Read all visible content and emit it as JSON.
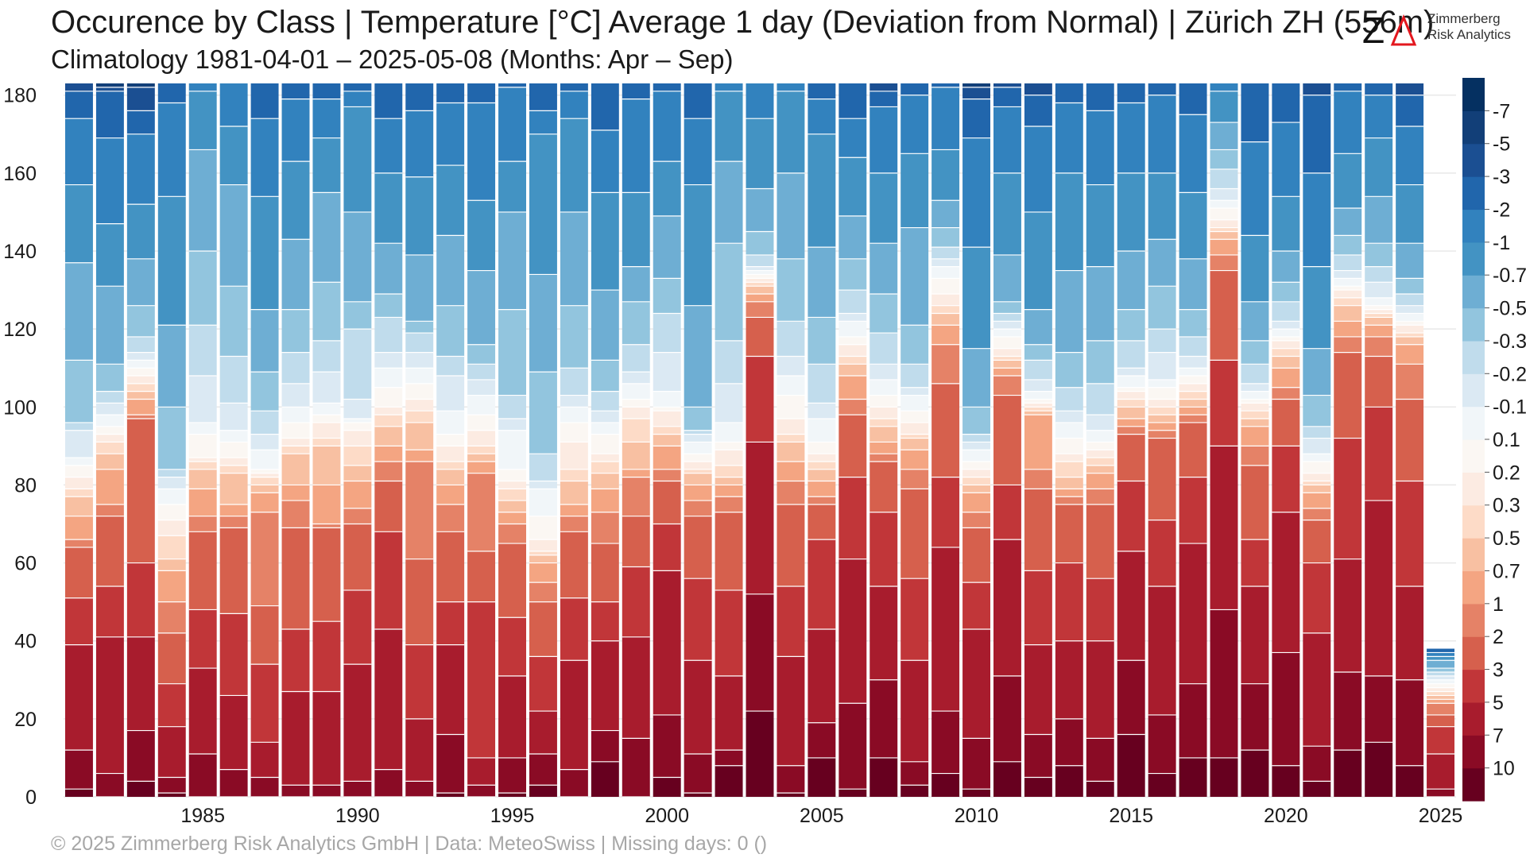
{
  "header": {
    "title": "Occurence by Class | Temperature [°C] Average 1 day (Deviation from Normal) | Zürich  ZH (556m)",
    "subtitle": "Climatology 1981-04-01 – 2025-05-08 (Months: Apr – Sep)"
  },
  "logo": {
    "line1": "Zimmerberg",
    "line2": "Risk Analytics",
    "mark": "Z-triangle-logo"
  },
  "footer": {
    "text": "©  2025 Zimmerberg Risk Analytics GmbH | Data: MeteoSwiss | Missing days: 0 ()"
  },
  "colors": {
    "grid": "#e8e8e8",
    "background": "#ffffff",
    "class_colors": [
      "#67001f",
      "#8a0b25",
      "#a81c2d",
      "#c13639",
      "#d6604d",
      "#e58267",
      "#f4a582",
      "#f8c0a2",
      "#fddbc7",
      "#fcebe2",
      "#fbf7f3",
      "#f1f6f9",
      "#dbe9f3",
      "#c0dcec",
      "#92c5de",
      "#6eaed3",
      "#4393c3",
      "#3282be",
      "#2166ac",
      "#1b4f92",
      "#123f78",
      "#053061"
    ]
  },
  "chart_data": {
    "type": "bar",
    "stacked": true,
    "grid": true,
    "ylim": [
      0,
      183
    ],
    "yticks": [
      "0",
      "20",
      "40",
      "60",
      "80",
      "100",
      "120",
      "140",
      "160",
      "180"
    ],
    "ytick_values": [
      0,
      20,
      40,
      60,
      80,
      100,
      120,
      140,
      160,
      180
    ],
    "xtick_labels": [
      "1985",
      "1990",
      "1995",
      "2000",
      "2005",
      "2010",
      "2015",
      "2020",
      "2025"
    ],
    "categories": [
      1981,
      1982,
      1983,
      1984,
      1985,
      1986,
      1987,
      1988,
      1989,
      1990,
      1991,
      1992,
      1993,
      1994,
      1995,
      1996,
      1997,
      1998,
      1999,
      2000,
      2001,
      2002,
      2003,
      2004,
      2005,
      2006,
      2007,
      2008,
      2009,
      2010,
      2011,
      2012,
      2013,
      2014,
      2015,
      2016,
      2017,
      2018,
      2019,
      2020,
      2021,
      2022,
      2023,
      2024,
      2025
    ],
    "legend": {
      "position": "right",
      "labels": [
        "",
        "10",
        "7",
        "5",
        "3",
        "2",
        "1",
        "0.7",
        "0.5",
        "0.3",
        "0.2",
        "0.1",
        "-0.1",
        "-0.2",
        "-0.3",
        "-0.5",
        "-0.7",
        "-1",
        "-2",
        "-3",
        "-5",
        "-7"
      ]
    },
    "boundaries": [
      [
        2,
        12,
        39,
        51,
        64,
        66,
        72,
        77,
        79,
        82,
        85,
        87,
        94,
        96,
        112,
        137,
        157,
        174,
        181,
        183
      ],
      [
        0,
        6,
        41,
        54,
        72,
        75,
        84,
        88,
        91,
        93,
        95,
        98,
        101,
        104,
        111,
        131,
        147,
        169,
        181,
        182,
        183
      ],
      [
        4,
        17,
        41,
        60,
        97,
        98,
        102,
        104,
        106,
        108,
        110,
        112,
        114,
        118,
        126,
        138,
        152,
        170,
        176,
        182,
        183
      ],
      [
        1,
        5,
        18,
        29,
        42,
        50,
        58,
        61,
        67,
        71,
        75,
        79,
        82,
        84,
        100,
        121,
        154,
        178,
        183
      ],
      [
        0,
        11,
        33,
        48,
        68,
        72,
        79,
        84,
        86,
        87,
        93,
        96,
        108,
        121,
        140,
        166,
        181,
        183
      ],
      [
        0,
        7,
        26,
        47,
        69,
        72,
        75,
        83,
        85,
        87,
        91,
        94,
        101,
        113,
        131,
        157,
        172,
        183
      ],
      [
        0,
        5,
        14,
        34,
        49,
        73,
        78,
        80,
        82,
        83,
        84,
        89,
        93,
        99,
        109,
        125,
        154,
        174,
        183
      ],
      [
        0,
        3,
        27,
        43,
        69,
        76,
        80,
        88,
        90,
        92,
        96,
        100,
        106,
        114,
        125,
        143,
        163,
        179,
        183
      ],
      [
        0,
        3,
        27,
        45,
        69,
        70,
        80,
        90,
        92,
        96,
        98,
        101,
        109,
        117,
        132,
        155,
        169,
        179,
        183
      ],
      [
        0,
        4,
        34,
        53,
        70,
        74,
        81,
        85,
        90,
        94,
        96,
        97,
        102,
        120,
        127,
        150,
        177,
        181,
        183
      ],
      [
        0,
        7,
        43,
        68,
        81,
        86,
        90,
        95,
        98,
        100,
        105,
        110,
        114,
        123,
        129,
        142,
        160,
        174,
        183
      ],
      [
        0,
        4,
        20,
        39,
        61,
        86,
        89,
        96,
        99,
        102,
        106,
        110,
        114,
        119,
        122,
        139,
        159,
        176,
        183
      ],
      [
        1,
        16,
        39,
        50,
        68,
        75,
        80,
        84,
        86,
        90,
        93,
        99,
        108,
        113,
        126,
        144,
        162,
        178,
        183
      ],
      [
        0,
        3,
        10,
        50,
        63,
        83,
        86,
        88,
        90,
        94,
        98,
        103,
        107,
        111,
        116,
        135,
        153,
        178,
        183
      ],
      [
        1,
        10,
        31,
        46,
        65,
        70,
        73,
        76,
        79,
        81,
        84,
        94,
        97,
        103,
        125,
        150,
        163,
        182,
        183
      ],
      [
        3,
        11,
        22,
        36,
        50,
        55,
        60,
        62,
        63,
        66,
        72,
        79,
        81,
        88,
        109,
        134,
        170,
        176,
        183
      ],
      [
        0,
        7,
        35,
        51,
        68,
        72,
        75,
        81,
        84,
        91,
        96,
        100,
        103,
        110,
        126,
        150,
        174,
        181,
        183
      ],
      [
        9,
        17,
        40,
        50,
        65,
        73,
        79,
        83,
        86,
        88,
        93,
        96,
        99,
        104,
        112,
        130,
        155,
        171,
        183
      ],
      [
        0,
        15,
        41,
        59,
        72,
        82,
        84,
        91,
        97,
        100,
        102,
        106,
        109,
        116,
        127,
        136,
        155,
        179,
        183
      ],
      [
        5,
        21,
        58,
        70,
        81,
        84,
        90,
        93,
        95,
        99,
        100,
        104,
        114,
        124,
        133,
        149,
        163,
        181,
        183
      ],
      [
        1,
        11,
        35,
        56,
        72,
        76,
        80,
        83,
        84,
        86,
        88,
        91,
        93,
        94,
        100,
        126,
        157,
        174,
        183
      ],
      [
        8,
        12,
        31,
        53,
        73,
        77,
        80,
        82,
        85,
        89,
        91,
        96,
        106,
        117,
        142,
        163,
        181,
        183
      ],
      [
        22,
        52,
        91,
        113,
        123,
        127,
        129,
        131,
        132,
        133,
        134,
        135,
        136,
        139,
        145,
        156,
        174,
        183
      ],
      [
        1,
        8,
        36,
        54,
        75,
        81,
        86,
        91,
        93,
        97,
        103,
        108,
        113,
        122,
        138,
        160,
        181,
        183
      ],
      [
        10,
        19,
        43,
        66,
        75,
        77,
        81,
        84,
        86,
        88,
        91,
        97,
        101,
        111,
        123,
        141,
        170,
        179,
        183
      ],
      [
        2,
        24,
        61,
        82,
        98,
        102,
        108,
        111,
        113,
        116,
        118,
        122,
        124,
        130,
        138,
        149,
        164,
        174,
        183
      ],
      [
        10,
        30,
        54,
        73,
        86,
        88,
        91,
        95,
        97,
        100,
        103,
        107,
        111,
        119,
        129,
        142,
        160,
        177,
        181,
        183
      ],
      [
        3,
        9,
        35,
        56,
        79,
        84,
        89,
        92,
        93,
        96,
        99,
        103,
        105,
        111,
        121,
        146,
        165,
        180,
        183
      ],
      [
        6,
        22,
        64,
        82,
        106,
        116,
        121,
        124,
        126,
        129,
        133,
        136,
        138,
        141,
        146,
        153,
        166,
        182,
        183
      ],
      [
        2,
        15,
        43,
        55,
        69,
        73,
        78,
        80,
        82,
        84,
        86,
        89,
        91,
        93,
        100,
        115,
        141,
        169,
        179,
        182,
        183
      ],
      [
        9,
        31,
        66,
        80,
        103,
        108,
        110,
        112,
        113,
        115,
        118,
        120,
        122,
        124,
        127,
        139,
        160,
        177,
        182,
        183
      ],
      [
        5,
        16,
        39,
        58,
        79,
        84,
        98,
        99,
        100,
        101,
        102,
        104,
        107,
        112,
        116,
        125,
        150,
        172,
        180,
        183
      ],
      [
        8,
        20,
        40,
        60,
        75,
        77,
        79,
        82,
        86,
        88,
        92,
        96,
        99,
        105,
        114,
        135,
        160,
        178,
        183
      ],
      [
        4,
        15,
        40,
        56,
        75,
        79,
        83,
        85,
        87,
        89,
        91,
        94,
        98,
        106,
        117,
        136,
        157,
        176,
        183
      ],
      [
        16,
        35,
        63,
        81,
        93,
        95,
        97,
        100,
        102,
        104,
        105,
        108,
        110,
        117,
        125,
        140,
        160,
        178,
        183
      ],
      [
        6,
        21,
        54,
        71,
        92,
        94,
        96,
        98,
        100,
        102,
        105,
        107,
        114,
        120,
        131,
        143,
        160,
        180,
        183
      ],
      [
        10,
        29,
        65,
        82,
        96,
        98,
        100,
        102,
        104,
        106,
        108,
        110,
        113,
        118,
        125,
        138,
        155,
        175,
        183
      ],
      [
        10,
        48,
        90,
        112,
        135,
        139,
        143,
        145,
        146,
        148,
        151,
        153,
        156,
        161,
        166,
        173,
        181,
        183
      ],
      [
        12,
        29,
        54,
        66,
        85,
        90,
        95,
        97,
        99,
        101,
        102,
        104,
        106,
        111,
        117,
        127,
        144,
        168,
        183
      ],
      [
        8,
        37,
        73,
        90,
        102,
        105,
        110,
        113,
        115,
        117,
        118,
        120,
        122,
        127,
        132,
        140,
        154,
        173,
        183
      ],
      [
        4,
        13,
        42,
        60,
        71,
        74,
        78,
        80,
        81,
        83,
        86,
        88,
        92,
        95,
        103,
        115,
        136,
        160,
        180,
        183
      ],
      [
        12,
        32,
        61,
        92,
        114,
        118,
        122,
        126,
        128,
        130,
        131,
        133,
        135,
        139,
        144,
        151,
        165,
        181,
        183
      ],
      [
        14,
        31,
        76,
        100,
        113,
        118,
        121,
        123,
        124,
        125,
        126,
        128,
        132,
        136,
        142,
        154,
        169,
        180,
        183
      ],
      [
        8,
        30,
        54,
        81,
        102,
        111,
        116,
        118,
        119,
        121,
        122,
        124,
        126,
        129,
        133,
        142,
        157,
        172,
        180,
        183
      ],
      [
        0,
        2,
        11,
        18,
        21,
        24,
        25,
        26,
        27,
        28,
        29,
        30,
        31,
        32,
        33,
        35,
        36,
        37,
        38
      ]
    ]
  }
}
